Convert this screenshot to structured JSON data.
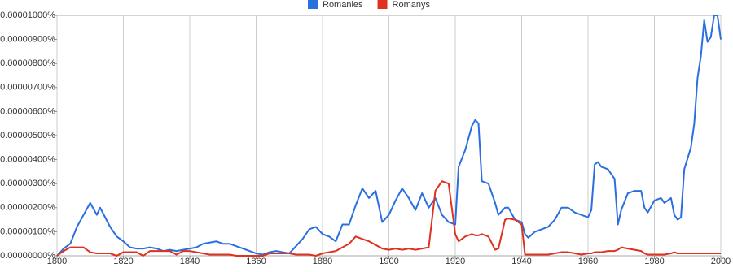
{
  "chart_data": {
    "type": "line",
    "x": [
      1800,
      1802,
      1804,
      1806,
      1808,
      1810,
      1812,
      1813,
      1816,
      1818,
      1820,
      1822,
      1824,
      1826,
      1828,
      1830,
      1832,
      1834,
      1836,
      1838,
      1840,
      1842,
      1844,
      1846,
      1848,
      1850,
      1852,
      1854,
      1856,
      1858,
      1860,
      1862,
      1864,
      1866,
      1868,
      1870,
      1872,
      1874,
      1876,
      1878,
      1880,
      1882,
      1884,
      1886,
      1888,
      1890,
      1892,
      1894,
      1896,
      1898,
      1900,
      1902,
      1904,
      1906,
      1908,
      1910,
      1912,
      1914,
      1916,
      1918,
      1920,
      1921,
      1923,
      1925,
      1926,
      1927,
      1928,
      1930,
      1932,
      1933,
      1935,
      1936,
      1938,
      1940,
      1941,
      1942,
      1944,
      1946,
      1948,
      1950,
      1952,
      1954,
      1956,
      1958,
      1960,
      1961,
      1962,
      1963,
      1964,
      1966,
      1968,
      1969,
      1970,
      1972,
      1974,
      1976,
      1977,
      1978,
      1980,
      1982,
      1983,
      1985,
      1986,
      1987,
      1988,
      1989,
      1991,
      1992,
      1993,
      1994,
      1995,
      1996,
      1997,
      1998,
      1999,
      2000
    ],
    "series": [
      {
        "name": "Romanies",
        "color": "#2a6fe0",
        "values": [
          0,
          3e-07,
          5e-07,
          1.2e-06,
          1.7e-06,
          2.2e-06,
          1.7e-06,
          2e-06,
          1.2e-06,
          8e-07,
          6e-07,
          3.5e-07,
          3e-07,
          3e-07,
          3.5e-07,
          3e-07,
          2e-07,
          2.5e-07,
          2e-07,
          2.5e-07,
          3e-07,
          3.5e-07,
          5e-07,
          5.5e-07,
          6e-07,
          5e-07,
          5e-07,
          4e-07,
          3e-07,
          2e-07,
          1e-07,
          5e-08,
          1.5e-07,
          2e-07,
          1.5e-07,
          1e-07,
          4e-07,
          7e-07,
          1.1e-06,
          1.2e-06,
          9e-07,
          8e-07,
          6e-07,
          1.3e-06,
          1.3e-06,
          2.1e-06,
          2.8e-06,
          2.4e-06,
          2.7e-06,
          1.4e-06,
          1.7e-06,
          2.3e-06,
          2.8e-06,
          2.4e-06,
          1.9e-06,
          2.6e-06,
          2e-06,
          2.4e-06,
          1.7e-06,
          1.4e-06,
          1.3e-06,
          3.7e-06,
          4.4e-06,
          5.4e-06,
          5.65e-06,
          5.5e-06,
          3.1e-06,
          3e-06,
          2.2e-06,
          1.7e-06,
          2e-06,
          2e-06,
          1.5e-06,
          1.4e-06,
          9e-07,
          7.5e-07,
          1e-06,
          1.1e-06,
          1.2e-06,
          1.5e-06,
          2e-06,
          2e-06,
          1.8e-06,
          1.7e-06,
          1.6e-06,
          1.9e-06,
          3.8e-06,
          3.9e-06,
          3.7e-06,
          3.6e-06,
          3.2e-06,
          1.3e-06,
          1.9e-06,
          2.6e-06,
          2.7e-06,
          2.7e-06,
          2e-06,
          1.8e-06,
          2.3e-06,
          2.4e-06,
          2.2e-06,
          2.4e-06,
          1.7e-06,
          1.5e-06,
          1.6e-06,
          3.6e-06,
          4.5e-06,
          5.5e-06,
          7.4e-06,
          8.3e-06,
          9.8e-06,
          8.9e-06,
          9.1e-06,
          1e-05,
          1e-05,
          9e-06
        ]
      },
      {
        "name": "Romanys",
        "color": "#e0301e",
        "values": [
          0,
          2e-07,
          3.5e-07,
          3.5e-07,
          3.5e-07,
          1.5e-07,
          1e-07,
          1e-07,
          1e-07,
          0,
          1.5e-07,
          1.5e-07,
          1.5e-07,
          0,
          2e-07,
          2e-07,
          2e-07,
          2e-07,
          5e-08,
          2e-07,
          2e-07,
          1.5e-07,
          1e-07,
          5e-08,
          5e-08,
          5e-08,
          5e-08,
          0,
          0,
          0,
          0,
          0,
          1e-07,
          1e-07,
          1e-07,
          1e-07,
          5e-08,
          5e-08,
          5e-08,
          0,
          1e-07,
          1.5e-07,
          2e-07,
          3.5e-07,
          5e-07,
          8e-07,
          7e-07,
          6e-07,
          4.5e-07,
          3e-07,
          2.5e-07,
          3e-07,
          2.5e-07,
          3e-07,
          2.5e-07,
          3e-07,
          3.5e-07,
          2.7e-06,
          3.1e-06,
          3e-06,
          9e-07,
          6e-07,
          8e-07,
          9e-07,
          8.5e-07,
          8.5e-07,
          9e-07,
          8e-07,
          2.5e-07,
          3e-07,
          1.5e-06,
          1.55e-06,
          1.5e-06,
          1.3e-06,
          5e-08,
          5e-08,
          5e-08,
          5e-08,
          5e-08,
          1e-07,
          1.5e-07,
          1.5e-07,
          1e-07,
          5e-08,
          1e-07,
          1e-07,
          1.5e-07,
          1.5e-07,
          1.5e-07,
          2e-07,
          2e-07,
          2.5e-07,
          3.5e-07,
          3e-07,
          2.5e-07,
          2e-07,
          1e-07,
          5e-08,
          5e-08,
          5e-08,
          5e-08,
          1e-07,
          1.5e-07,
          1e-07,
          1e-07,
          1e-07,
          1e-07,
          1e-07,
          1e-07,
          1e-07,
          1e-07,
          1e-07,
          1e-07,
          1e-07,
          1e-07,
          1e-07
        ]
      }
    ],
    "xlim": [
      1800,
      2000
    ],
    "xticks": [
      1800,
      1820,
      1840,
      1860,
      1880,
      1900,
      1920,
      1940,
      1960,
      1980,
      2000
    ],
    "ylim": [
      0,
      1e-05
    ],
    "yticks": [
      {
        "value": 0,
        "label": "0.00000000%"
      },
      {
        "value": 1e-06,
        "label": "0.00000100%"
      },
      {
        "value": 2e-06,
        "label": "0.00000200%"
      },
      {
        "value": 3e-06,
        "label": "0.00000300%"
      },
      {
        "value": 4e-06,
        "label": "0.00000400%"
      },
      {
        "value": 5e-06,
        "label": "0.00000500%"
      },
      {
        "value": 6e-06,
        "label": "0.00000600%"
      },
      {
        "value": 7e-06,
        "label": "0.00000700%"
      },
      {
        "value": 8e-06,
        "label": "0.00000800%"
      },
      {
        "value": 9e-06,
        "label": "0.00000900%"
      },
      {
        "value": 1e-05,
        "label": "0.00001000%"
      }
    ],
    "grid": true,
    "legend": "top"
  }
}
